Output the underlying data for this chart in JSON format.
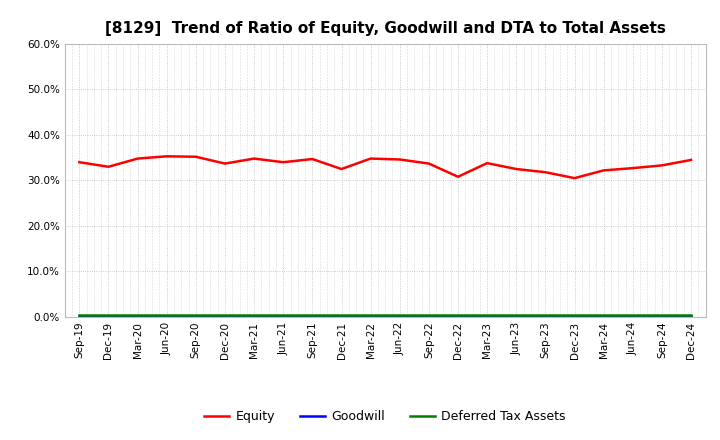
{
  "title": "[8129]  Trend of Ratio of Equity, Goodwill and DTA to Total Assets",
  "x_labels": [
    "Sep-19",
    "Dec-19",
    "Mar-20",
    "Jun-20",
    "Sep-20",
    "Dec-20",
    "Mar-21",
    "Jun-21",
    "Sep-21",
    "Dec-21",
    "Mar-22",
    "Jun-22",
    "Sep-22",
    "Dec-22",
    "Mar-23",
    "Jun-23",
    "Sep-23",
    "Dec-23",
    "Mar-24",
    "Jun-24",
    "Sep-24",
    "Dec-24"
  ],
  "equity": [
    0.34,
    0.33,
    0.348,
    0.353,
    0.352,
    0.337,
    0.348,
    0.34,
    0.347,
    0.325,
    0.348,
    0.346,
    0.337,
    0.308,
    0.338,
    0.325,
    0.318,
    0.305,
    0.322,
    0.327,
    0.333,
    0.345
  ],
  "goodwill": [
    0.001,
    0.001,
    0.001,
    0.001,
    0.001,
    0.001,
    0.001,
    0.001,
    0.001,
    0.001,
    0.001,
    0.001,
    0.001,
    0.001,
    0.001,
    0.001,
    0.001,
    0.001,
    0.001,
    0.001,
    0.001,
    0.001
  ],
  "dta": [
    0.003,
    0.003,
    0.003,
    0.003,
    0.003,
    0.003,
    0.003,
    0.003,
    0.003,
    0.003,
    0.003,
    0.003,
    0.003,
    0.003,
    0.003,
    0.003,
    0.003,
    0.003,
    0.003,
    0.003,
    0.003,
    0.003
  ],
  "equity_color": "#ff0000",
  "goodwill_color": "#0000ff",
  "dta_color": "#008000",
  "ylim": [
    0.0,
    0.6
  ],
  "yticks": [
    0.0,
    0.1,
    0.2,
    0.3,
    0.4,
    0.5,
    0.6
  ],
  "background_color": "#ffffff",
  "grid_color": "#bbbbbb",
  "legend_labels": [
    "Equity",
    "Goodwill",
    "Deferred Tax Assets"
  ],
  "title_fontsize": 11,
  "tick_fontsize": 7.5
}
